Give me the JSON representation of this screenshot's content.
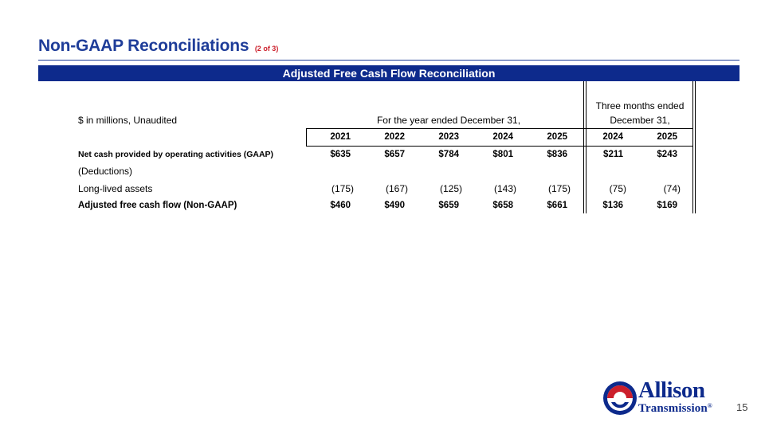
{
  "header": {
    "title": "Non-GAAP Reconciliations",
    "subtitle": "(2 of 3)"
  },
  "banner": {
    "title": "Adjusted Free Cash Flow Reconciliation"
  },
  "table": {
    "unit_label": "$ in millions, Unaudited",
    "annual_group_label": "For the year ended December 31,",
    "quarter_group_label_line1": "Three months ended",
    "quarter_group_label_line2": "December 31,",
    "year_columns": [
      "2021",
      "2022",
      "2023",
      "2024",
      "2025"
    ],
    "quarter_columns": [
      "2024",
      "2025"
    ],
    "rows": [
      {
        "label": "Net cash provided by operating activities (GAAP)",
        "bold": true,
        "annual": [
          "$635",
          "$657",
          "$784",
          "$801",
          "$836"
        ],
        "quarter": [
          "$211",
          "$243"
        ]
      },
      {
        "label": "(Deductions)",
        "bold": false,
        "annual": [
          "",
          "",
          "",
          "",
          ""
        ],
        "quarter": [
          "",
          ""
        ]
      },
      {
        "label": "Long-lived assets",
        "bold": false,
        "annual": [
          "(175)",
          "(167)",
          "(125)",
          "(143)",
          "(175)"
        ],
        "quarter": [
          "(75)",
          "(74)"
        ]
      },
      {
        "label": "Adjusted free cash flow (Non-GAAP)",
        "bold": true,
        "annual": [
          "$460",
          "$490",
          "$659",
          "$658",
          "$661"
        ],
        "quarter": [
          "$136",
          "$169"
        ]
      }
    ]
  },
  "footer": {
    "logo_line1": "Allison",
    "logo_line2": "Transmission",
    "trademark": "®",
    "page_number": "15",
    "logo_colors": {
      "blue": "#0d2a8c",
      "red": "#cc1f2b"
    }
  },
  "colors": {
    "title": "#1f3d99",
    "banner": "#0d2a8c",
    "subtitle": "#cc1f2b"
  }
}
